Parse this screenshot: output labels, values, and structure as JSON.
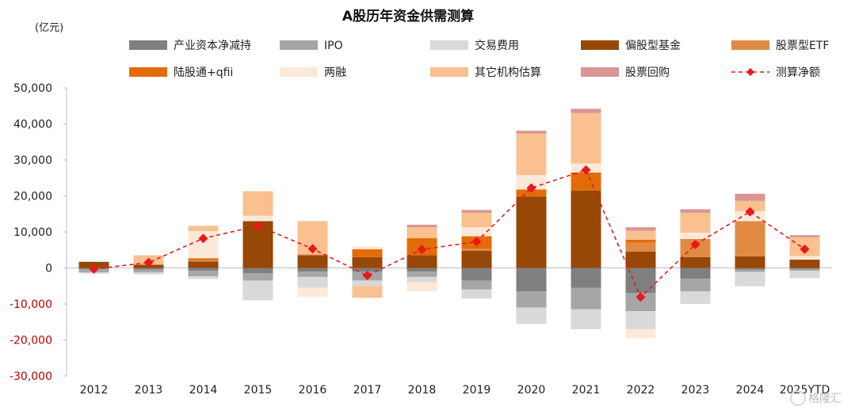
{
  "chart_data": {
    "type": "bar",
    "title": "A股历年资金供需测算",
    "unit_label": "(亿元)",
    "categories": [
      "2012",
      "2013",
      "2014",
      "2015",
      "2016",
      "2017",
      "2018",
      "2019",
      "2020",
      "2021",
      "2022",
      "2023",
      "2024",
      "2025YTD"
    ],
    "ylim": [
      -30000,
      50000
    ],
    "yticks": [
      -30000,
      -20000,
      -10000,
      0,
      10000,
      20000,
      30000,
      40000,
      50000
    ],
    "ytick_labels": [
      "-30,000",
      "-20,000",
      "-10,000",
      "0",
      "10,000",
      "20,000",
      "30,000",
      "40,000",
      "50,000"
    ],
    "legend_position": "top",
    "series": [
      {
        "name": "产业资本净减持",
        "color": "#7f7f7f",
        "kind": "bar",
        "values": [
          -400,
          -500,
          -800,
          -1500,
          -1000,
          -1000,
          -1000,
          -3500,
          -6500,
          -5500,
          -7000,
          -3000,
          -500,
          -300
        ]
      },
      {
        "name": "IPO",
        "color": "#a6a6a6",
        "kind": "bar",
        "values": [
          -800,
          -700,
          -1500,
          -2000,
          -1500,
          -2500,
          -1500,
          -2500,
          -4500,
          -6000,
          -5000,
          -3500,
          -600,
          -500
        ]
      },
      {
        "name": "交易费用",
        "color": "#d9d9d9",
        "kind": "bar",
        "values": [
          -400,
          -600,
          -800,
          -5500,
          -3000,
          -1500,
          -1500,
          -2500,
          -4500,
          -5500,
          -5000,
          -3500,
          -4000,
          -2000
        ]
      },
      {
        "name": "偏股型基金",
        "color": "#974706",
        "kind": "bar",
        "values": [
          1700,
          900,
          1800,
          13000,
          3500,
          3000,
          3500,
          4800,
          19800,
          21500,
          4500,
          3000,
          3200,
          2300
        ]
      },
      {
        "name": "股票型ETF",
        "color": "#e08a44",
        "kind": "bar",
        "values": [
          0,
          0,
          400,
          0,
          300,
          0,
          0,
          500,
          0,
          0,
          2500,
          4800,
          9800,
          0
        ]
      },
      {
        "name": "陆股通+qfii",
        "color": "#e36c09",
        "kind": "bar",
        "values": [
          0,
          0,
          500,
          0,
          0,
          2200,
          4800,
          3500,
          2000,
          5000,
          800,
          200,
          0,
          0
        ]
      },
      {
        "name": "两融",
        "color": "#fde9d9",
        "kind": "bar",
        "values": [
          0,
          0,
          7500,
          1500,
          -2500,
          800,
          -2500,
          2500,
          4000,
          2500,
          -2500,
          1800,
          2800,
          1000
        ]
      },
      {
        "name": "其它机构估算",
        "color": "#fac090",
        "kind": "bar",
        "values": [
          0,
          2600,
          1500,
          6800,
          9200,
          -3300,
          3000,
          4000,
          11500,
          14000,
          2500,
          5500,
          2800,
          5200
        ]
      },
      {
        "name": "股票回购",
        "color": "#d99694",
        "kind": "bar",
        "values": [
          0,
          0,
          0,
          0,
          0,
          0,
          700,
          800,
          800,
          1200,
          1000,
          1000,
          2000,
          600
        ]
      },
      {
        "name": "测算净额",
        "color": "#e81919",
        "kind": "line",
        "values": [
          -300,
          1500,
          8200,
          11700,
          5300,
          -2100,
          5100,
          7300,
          22200,
          27200,
          -8100,
          6500,
          15600,
          5200
        ]
      }
    ]
  },
  "watermark": "格隆汇"
}
